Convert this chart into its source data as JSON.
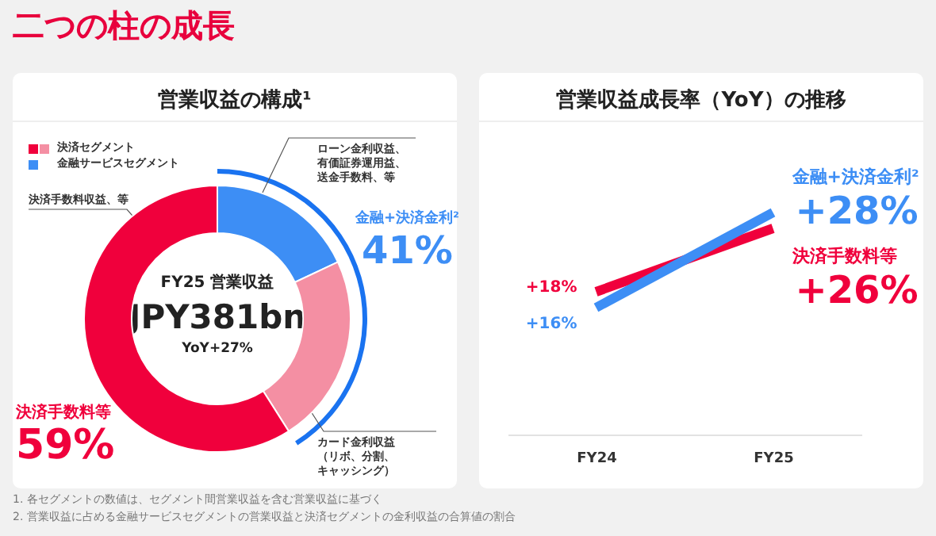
{
  "chart_data": [
    {
      "type": "donut",
      "title": "営業収益の構成¹",
      "categories": [
        "ローン金利収益、有価証券運用益、送金手数料、等",
        "カード金利収益（リボ、分割、キャッシング）",
        "決済手数料収益、等"
      ],
      "values": [
        18,
        23,
        59
      ],
      "colors": [
        "#3d8ef5",
        "#f48fa3",
        "#f0003c"
      ],
      "annotations": [
        "二つの柱の成長",
        "決済セグメント",
        "金融サービスセグメント",
        "FY25 営業収益",
        "JPY381bn",
        "YoY+27%",
        "金融+決済金利²",
        "41%",
        "決済手数料等",
        "59%",
        "1. 各セグメントの数値は、セグメント間営業収益を含む営業収益に基づく",
        "2. 営業収益に占める金融サービスセグメントの営業収益と決済セグメントの金利収益の合算値の割合"
      ]
    },
    {
      "type": "line",
      "title": "営業収益成長率（YoY）の推移",
      "categories": [
        "FY24",
        "FY25"
      ],
      "series": [
        {
          "name": "金融+決済金利²",
          "color": "#3d8ef5",
          "values": [
            16,
            28
          ],
          "value_labels": [
            "+16%",
            "+28%"
          ]
        },
        {
          "name": "決済手数料等",
          "color": "#f0003c",
          "values": [
            18,
            26
          ],
          "value_labels": [
            "+18%",
            "+26%"
          ]
        }
      ],
      "ylim": [
        0,
        40
      ],
      "tick_labels": "x"
    }
  ]
}
